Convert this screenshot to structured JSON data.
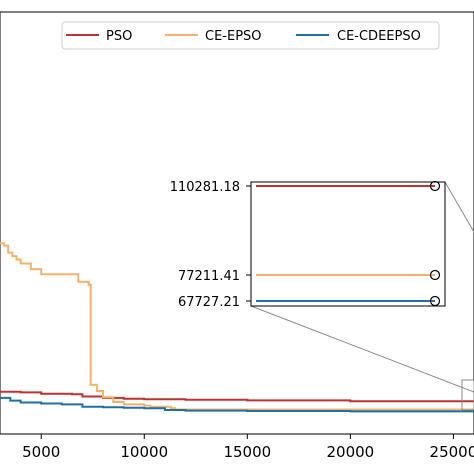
{
  "chart_data": {
    "type": "line",
    "title": "",
    "xlabel": "",
    "ylabel": "",
    "xlim": [
      3000,
      26000
    ],
    "ylim": [
      0,
      1000000
    ],
    "x_ticks": [
      "5000",
      "10000",
      "15000",
      "20000",
      "25000"
    ],
    "legend": {
      "placement": "top",
      "entries": [
        "PSO",
        "CE-EPSO",
        "CE-CDEEPSO"
      ]
    },
    "series": [
      {
        "name": "PSO",
        "color": "#c0312f",
        "x": [
          3000,
          4000,
          5000,
          6500,
          7000,
          8000,
          9000,
          10000,
          12000,
          15000,
          20000,
          26000
        ],
        "y": [
          147000,
          145000,
          140000,
          138000,
          130000,
          125000,
          122000,
          120000,
          118000,
          116000,
          113000,
          110281.18
        ]
      },
      {
        "name": "CE-EPSO",
        "color": "#f5b26b",
        "x": [
          3000,
          3200,
          3400,
          3600,
          3800,
          4000,
          4500,
          5000,
          6600,
          6800,
          7300,
          7400,
          7700,
          8000,
          8500,
          9000,
          10000,
          10300,
          11300,
          11500,
          26000
        ],
        "y": [
          998000,
          985000,
          945000,
          925000,
          905000,
          882000,
          850000,
          820000,
          820000,
          778000,
          760000,
          185000,
          150000,
          128000,
          110000,
          100000,
          95000,
          90000,
          85000,
          79000,
          77211.41
        ]
      },
      {
        "name": "CE-CDEEPSO",
        "color": "#1f6fa8",
        "x": [
          3000,
          3500,
          4000,
          5000,
          6000,
          7000,
          8000,
          9000,
          10000,
          11000,
          12000,
          15000,
          20000,
          26000
        ],
        "y": [
          125000,
          115000,
          108000,
          104000,
          100000,
          90000,
          88000,
          86000,
          84000,
          77000,
          74000,
          72000,
          70000,
          67727.21
        ]
      }
    ],
    "inset": {
      "labels": [
        "110281.18",
        "77211.41",
        "67727.21"
      ],
      "values": [
        110281.18,
        77211.41,
        67727.21
      ]
    }
  }
}
